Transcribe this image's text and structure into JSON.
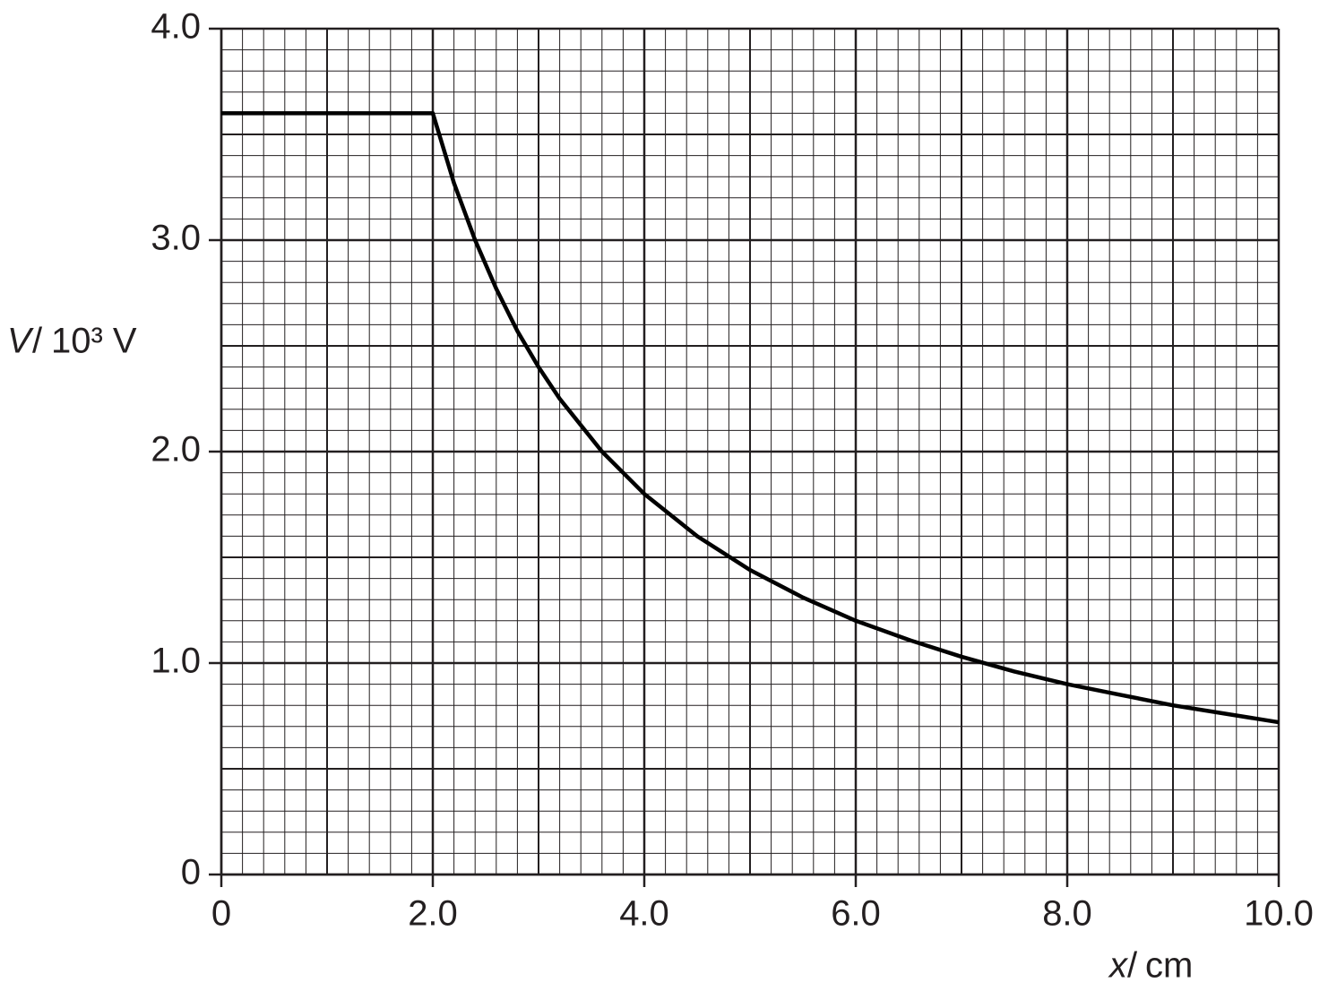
{
  "chart_data": {
    "type": "line",
    "xlabel": {
      "quantity": "x",
      "unit": "cm"
    },
    "ylabel": {
      "quantity": "V",
      "unit": "10³ V"
    },
    "x": [
      0,
      2,
      2.2,
      2.4,
      2.6,
      2.8,
      3.0,
      3.2,
      3.6,
      4.0,
      4.5,
      5.0,
      5.5,
      6.0,
      6.5,
      7.0,
      7.5,
      8.0,
      8.5,
      9.0,
      9.5,
      10.0
    ],
    "series": [
      {
        "color": "#000000",
        "values": [
          3.6,
          3.6,
          3.27,
          3.0,
          2.77,
          2.57,
          2.4,
          2.25,
          2.0,
          1.8,
          1.6,
          1.44,
          1.31,
          1.2,
          1.11,
          1.03,
          0.96,
          0.9,
          0.85,
          0.8,
          0.76,
          0.72
        ]
      }
    ],
    "xlim": [
      0,
      10
    ],
    "ylim": [
      0,
      4
    ],
    "xticks": [
      0,
      {
        "value": 2,
        "label": "2.0"
      },
      {
        "value": 4,
        "label": "4.0"
      },
      {
        "value": 6,
        "label": "6.0"
      },
      {
        "value": 8,
        "label": "8.0"
      },
      {
        "value": 10,
        "label": "10.0"
      }
    ],
    "yticks": [
      0,
      {
        "value": 1,
        "label": "1.0"
      },
      {
        "value": 2,
        "label": "2.0"
      },
      {
        "value": 3,
        "label": "3.0"
      },
      {
        "value": 4,
        "label": "4.0"
      }
    ],
    "grid": true
  }
}
